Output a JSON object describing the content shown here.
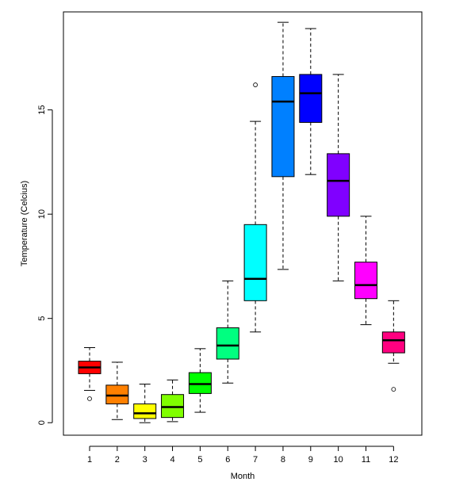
{
  "chart_data": {
    "type": "boxplot",
    "title": "",
    "xlabel": "Month",
    "ylabel": "Temperature (Celcius)",
    "ylim": [
      -0.6,
      19.7
    ],
    "yticks": [
      0,
      5,
      10,
      15
    ],
    "grid": false,
    "categories": [
      "1",
      "2",
      "3",
      "4",
      "5",
      "6",
      "7",
      "8",
      "9",
      "10",
      "11",
      "12"
    ],
    "boxes": [
      {
        "category": "1",
        "color": "#FF0000",
        "whisker_low": 1.55,
        "q1": 2.35,
        "median": 2.65,
        "q3": 2.95,
        "whisker_high": 3.6,
        "outliers": [
          1.15
        ]
      },
      {
        "category": "2",
        "color": "#FF8000",
        "whisker_low": 0.15,
        "q1": 0.9,
        "median": 1.3,
        "q3": 1.8,
        "whisker_high": 2.9,
        "outliers": []
      },
      {
        "category": "3",
        "color": "#FFFF00",
        "whisker_low": 0.0,
        "q1": 0.2,
        "median": 0.45,
        "q3": 0.9,
        "whisker_high": 1.85,
        "outliers": []
      },
      {
        "category": "4",
        "color": "#80FF00",
        "whisker_low": 0.05,
        "q1": 0.25,
        "median": 0.75,
        "q3": 1.35,
        "whisker_high": 2.05,
        "outliers": []
      },
      {
        "category": "5",
        "color": "#00FF00",
        "whisker_low": 0.5,
        "q1": 1.4,
        "median": 1.85,
        "q3": 2.4,
        "whisker_high": 3.55,
        "outliers": []
      },
      {
        "category": "6",
        "color": "#00FF80",
        "whisker_low": 1.9,
        "q1": 3.05,
        "median": 3.7,
        "q3": 4.55,
        "whisker_high": 6.8,
        "outliers": []
      },
      {
        "category": "7",
        "color": "#00FFFF",
        "whisker_low": 4.35,
        "q1": 5.85,
        "median": 6.9,
        "q3": 9.5,
        "whisker_high": 14.45,
        "outliers": [
          16.2
        ]
      },
      {
        "category": "8",
        "color": "#0080FF",
        "whisker_low": 7.35,
        "q1": 11.8,
        "median": 15.4,
        "q3": 16.6,
        "whisker_high": 19.2,
        "outliers": []
      },
      {
        "category": "9",
        "color": "#0000FF",
        "whisker_low": 11.9,
        "q1": 14.4,
        "median": 15.8,
        "q3": 16.7,
        "whisker_high": 18.9,
        "outliers": []
      },
      {
        "category": "10",
        "color": "#8000FF",
        "whisker_low": 6.8,
        "q1": 9.9,
        "median": 11.6,
        "q3": 12.9,
        "whisker_high": 16.7,
        "outliers": []
      },
      {
        "category": "11",
        "color": "#FF00FF",
        "whisker_low": 4.7,
        "q1": 5.95,
        "median": 6.6,
        "q3": 7.7,
        "whisker_high": 9.9,
        "outliers": []
      },
      {
        "category": "12",
        "color": "#FF0080",
        "whisker_low": 2.85,
        "q1": 3.35,
        "median": 3.95,
        "q3": 4.35,
        "whisker_high": 5.85,
        "outliers": [
          1.6
        ]
      }
    ]
  }
}
